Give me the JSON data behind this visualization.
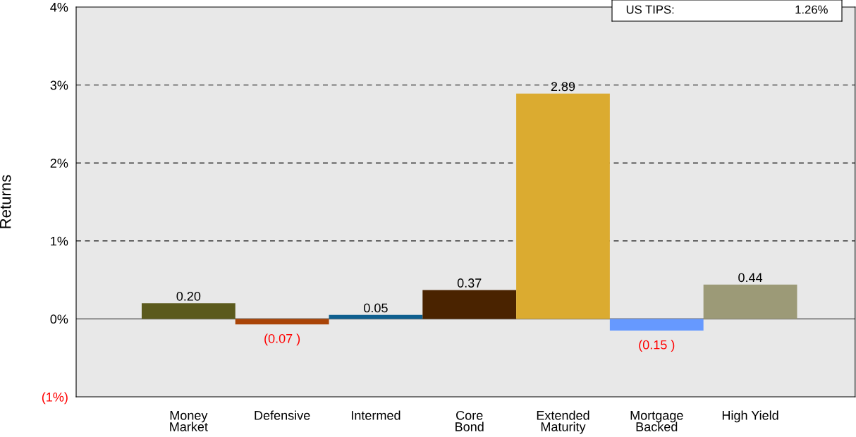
{
  "chart_data": {
    "type": "bar",
    "ylabel": "Returns",
    "categories": [
      "Money\nMarket",
      "Defensive",
      "Intermed",
      "Core\nBond",
      "Extended\nMaturity",
      "Mortgage\nBacked",
      "High Yield"
    ],
    "values": [
      0.2,
      -0.07,
      0.05,
      0.37,
      2.89,
      -0.15,
      0.44
    ],
    "colors": [
      "#5b5a1d",
      "#a94407",
      "#0e5f8f",
      "#4a2300",
      "#dbab30",
      "#6699ff",
      "#9c9a77"
    ],
    "value_labels": [
      "0.20",
      "(0.07 )",
      "0.05",
      "0.37",
      "2.89",
      "(0.15 )",
      "0.44"
    ],
    "ylim": [
      -1,
      4
    ],
    "yticks": [
      {
        "value": -1,
        "label": "(1%)"
      },
      {
        "value": 0,
        "label": "0%"
      },
      {
        "value": 1,
        "label": "1%"
      },
      {
        "value": 2,
        "label": "2%"
      },
      {
        "value": 3,
        "label": "3%"
      },
      {
        "value": 4,
        "label": "4%"
      }
    ],
    "grid": "y",
    "annotations": [
      "US TIPS:\t1.26%"
    ]
  }
}
